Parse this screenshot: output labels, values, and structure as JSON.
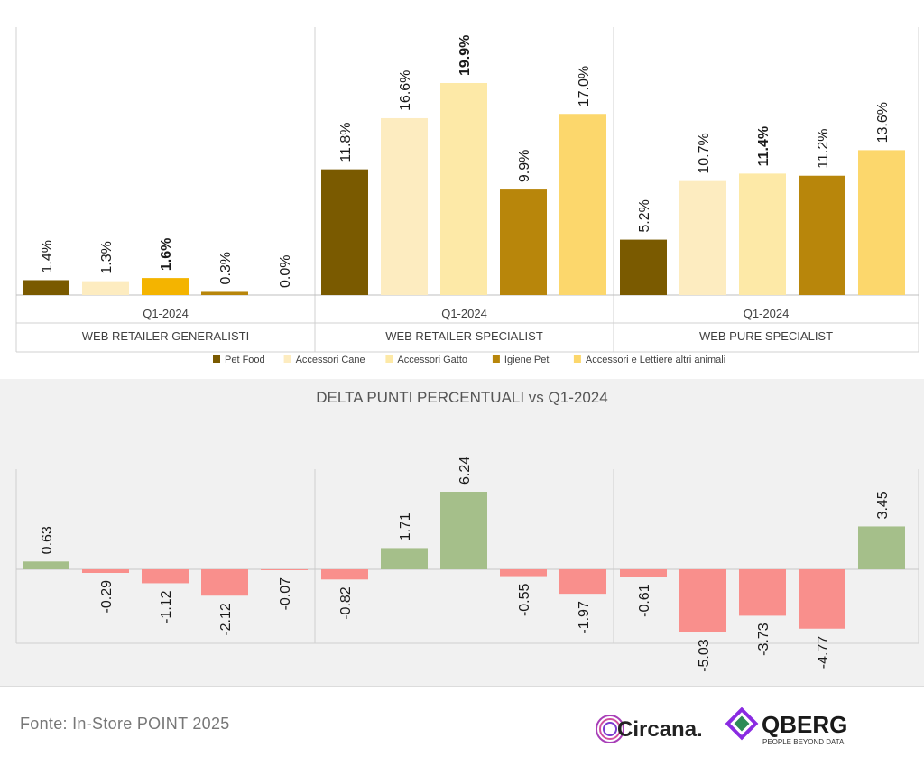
{
  "chart_data": [
    {
      "type": "bar",
      "title": "",
      "groups": [
        {
          "period": "Q1-2024",
          "label": "WEB RETAILER GENERALISTI"
        },
        {
          "period": "Q1-2024",
          "label": "WEB RETAILER SPECIALIST"
        },
        {
          "period": "Q1-2024",
          "label": "WEB PURE SPECIALIST"
        }
      ],
      "series": [
        {
          "name": "Pet Food",
          "color": "#7a5a00",
          "values": [
            1.4,
            11.8,
            5.2
          ],
          "labels": [
            "1.4%",
            "11.8%",
            "5.2%"
          ]
        },
        {
          "name": "Accessori Cane",
          "color": "#fdecc0",
          "values": [
            1.3,
            16.6,
            10.7
          ],
          "labels": [
            "1.3%",
            "16.6%",
            "10.7%"
          ]
        },
        {
          "name": "Accessori Gatto",
          "color": "#fde9a7",
          "values": [
            1.6,
            19.9,
            11.4
          ],
          "labels": [
            "1.6%",
            "19.9%",
            "11.4%"
          ],
          "bold_labels": true
        },
        {
          "name": "Igiene Pet",
          "color": "#b8860b",
          "values": [
            0.3,
            9.9,
            11.2
          ],
          "labels": [
            "0.3%",
            "9.9%",
            "11.2%"
          ]
        },
        {
          "name": "Accessori e Lettiere altri animali",
          "color": "#fcd76c",
          "values": [
            0.0,
            17.0,
            13.6
          ],
          "labels": [
            "0.0%",
            "17.0%",
            "13.6%"
          ]
        }
      ],
      "special_colors": {
        "generalisti_accessori_gatto": "#f4b400"
      },
      "ylim": [
        0,
        22
      ],
      "legend_position": "bottom"
    },
    {
      "type": "bar",
      "title": "DELTA PUNTI PERCENTUALI vs Q1-2024",
      "groups": [
        "WEB RETAILER GENERALISTI",
        "WEB RETAILER SPECIALIST",
        "WEB PURE SPECIALIST"
      ],
      "values": [
        [
          0.63,
          -0.29,
          -1.12,
          -2.12,
          -0.07
        ],
        [
          -0.82,
          1.71,
          6.24,
          -0.55,
          -1.97
        ],
        [
          -0.61,
          -5.03,
          -3.73,
          -4.77,
          3.45
        ]
      ],
      "labels": [
        [
          "0.63",
          "-0.29",
          "-1.12",
          "-2.12",
          "-0.07"
        ],
        [
          "-0.82",
          "1.71",
          "6.24",
          "-0.55",
          "-1.97"
        ],
        [
          "-0.61",
          "-5.03",
          "-3.73",
          "-4.77",
          "3.45"
        ]
      ],
      "positive_color": "#a5bf8a",
      "negative_color": "#f98f8c",
      "ylim": [
        -7,
        8
      ]
    }
  ],
  "footer": {
    "source": "Fonte: In-Store POINT 2025",
    "logo1_text": "Circana.",
    "logo2_text": "QBERG",
    "logo2_tagline": "PEOPLE BEYOND DATA"
  }
}
